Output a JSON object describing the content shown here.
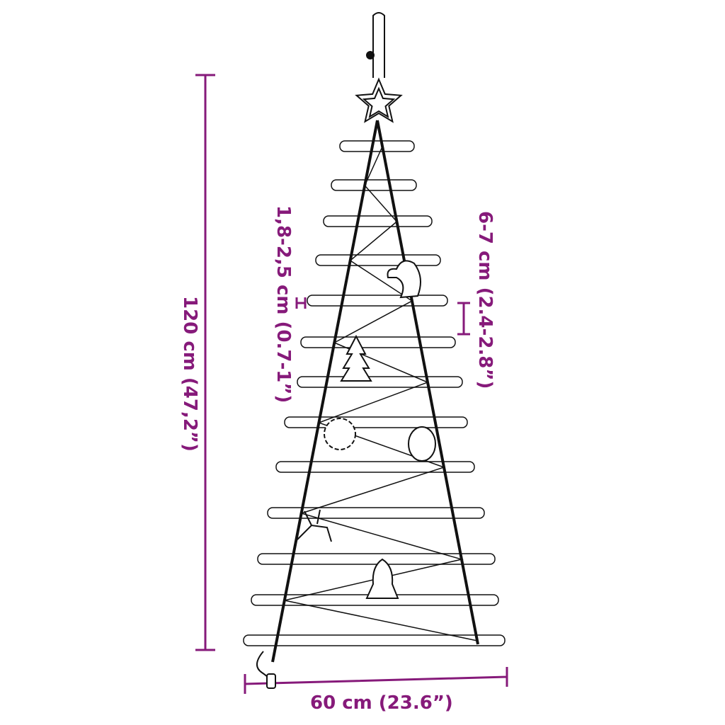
{
  "dimensions": {
    "height": "120 cm (47,2”)",
    "width": "60 cm (23.6”)",
    "branch_thickness": "1,8-2,5 cm (0.7-1”)",
    "branch_spacing": "6-7 cm (2.4-2.8”)"
  },
  "colors": {
    "dimension": "#861a7a",
    "line": "#111111"
  },
  "ornaments": [
    "star",
    "unicorn",
    "tree",
    "snowflake",
    "bauble",
    "reindeer",
    "bell",
    "usb-plug"
  ]
}
